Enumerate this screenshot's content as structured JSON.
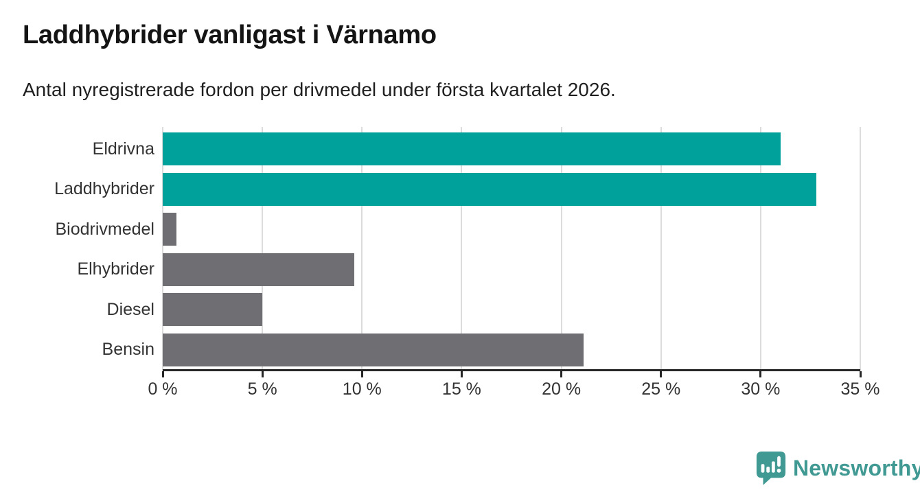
{
  "header": {
    "title": "Laddhybrider vanligast i Värnamo",
    "subtitle": "Antal nyregistrerade fordon per drivmedel under första kvartalet 2026."
  },
  "chart_data": {
    "type": "bar",
    "orientation": "horizontal",
    "title": "Laddhybrider vanligast i Värnamo",
    "subtitle": "Antal nyregistrerade fordon per drivmedel under första kvartalet 2026.",
    "xlabel": "",
    "ylabel": "",
    "unit": "%",
    "categories": [
      "Eldrivna",
      "Laddhybrider",
      "Biodrivmedel",
      "Elhybrider",
      "Diesel",
      "Bensin"
    ],
    "values": [
      31.0,
      32.8,
      0.7,
      9.6,
      5.0,
      21.1
    ],
    "bar_colors": [
      "#00a19a",
      "#00a19a",
      "#6e6e73",
      "#6e6e73",
      "#6e6e73",
      "#6e6e73"
    ],
    "xlim": [
      0,
      35
    ],
    "x_ticks": [
      0,
      5,
      10,
      15,
      20,
      25,
      30,
      35
    ],
    "x_tick_labels": [
      "0 %",
      "5 %",
      "10 %",
      "15 %",
      "20 %",
      "25 %",
      "30 %",
      "35 %"
    ],
    "grid": true,
    "legend": false
  },
  "colors": {
    "accent_teal": "#00a19a",
    "bar_gray": "#6e6e73",
    "gridline": "#dcdcdc",
    "axis": "#262626",
    "text_dark": "#141414",
    "text_label": "#333333",
    "logo_teal": "#409993"
  },
  "branding": {
    "logo_text": "Newsworthy",
    "logo_icon": "newsworthy-speech-bubble-bar-chart-icon"
  }
}
